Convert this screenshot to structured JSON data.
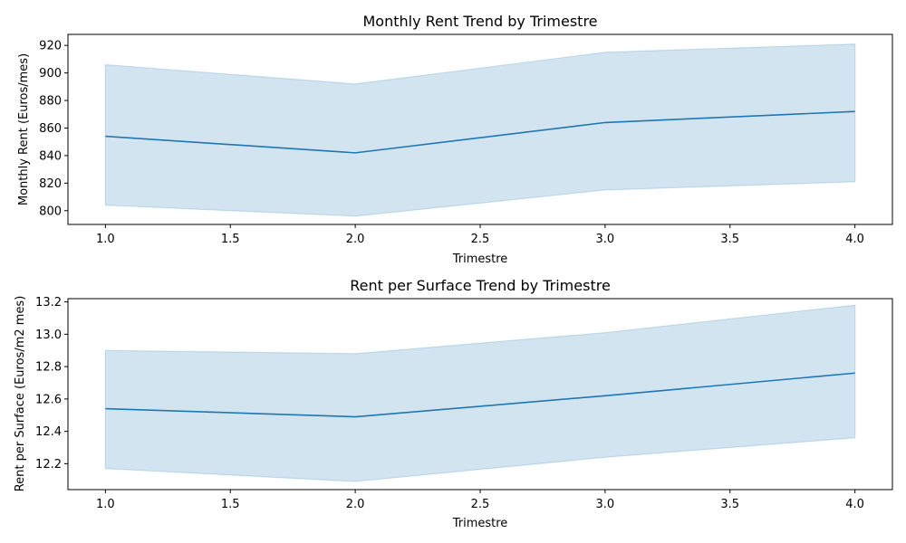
{
  "chart_data": [
    {
      "type": "line",
      "title": "Monthly Rent Trend by Trimestre",
      "xlabel": "Trimestre",
      "ylabel": "Monthly Rent (Euros/mes)",
      "x": [
        1,
        2,
        3,
        4
      ],
      "y": [
        854,
        842,
        864,
        872
      ],
      "ci_lower": [
        804,
        796,
        815,
        821
      ],
      "ci_upper": [
        906,
        892,
        915,
        921
      ],
      "xlim": [
        0.85,
        4.15
      ],
      "ylim": [
        790,
        928
      ],
      "xticks": [
        1.0,
        1.5,
        2.0,
        2.5,
        3.0,
        3.5,
        4.0
      ],
      "xtick_labels": [
        "1.0",
        "1.5",
        "2.0",
        "2.5",
        "3.0",
        "3.5",
        "4.0"
      ],
      "yticks": [
        800,
        820,
        840,
        860,
        880,
        900,
        920
      ],
      "ytick_labels": [
        "800",
        "820",
        "840",
        "860",
        "880",
        "900",
        "920"
      ],
      "color": "#1f77b4",
      "grid": false
    },
    {
      "type": "line",
      "title": "Rent per Surface Trend by Trimestre",
      "xlabel": "Trimestre",
      "ylabel": "Rent per Surface (Euros/m2 mes)",
      "x": [
        1,
        2,
        3,
        4
      ],
      "y": [
        12.54,
        12.49,
        12.62,
        12.76
      ],
      "ci_lower": [
        12.17,
        12.09,
        12.24,
        12.36
      ],
      "ci_upper": [
        12.9,
        12.88,
        13.01,
        13.18
      ],
      "xlim": [
        0.85,
        4.15
      ],
      "ylim": [
        12.04,
        13.22
      ],
      "xticks": [
        1.0,
        1.5,
        2.0,
        2.5,
        3.0,
        3.5,
        4.0
      ],
      "xtick_labels": [
        "1.0",
        "1.5",
        "2.0",
        "2.5",
        "3.0",
        "3.5",
        "4.0"
      ],
      "yticks": [
        12.2,
        12.4,
        12.6,
        12.8,
        13.0,
        13.2
      ],
      "ytick_labels": [
        "12.2",
        "12.4",
        "12.6",
        "12.8",
        "13.0",
        "13.2"
      ],
      "color": "#1f77b4",
      "grid": false
    }
  ]
}
